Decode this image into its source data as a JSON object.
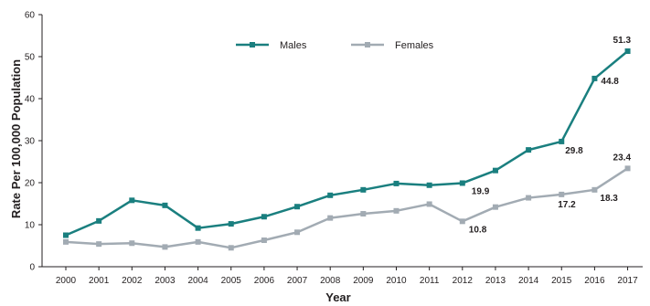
{
  "chart_data": {
    "type": "line",
    "x": [
      "2000",
      "2001",
      "2002",
      "2003",
      "2004",
      "2005",
      "2006",
      "2007",
      "2008",
      "2009",
      "2010",
      "2011",
      "2012",
      "2013",
      "2014",
      "2015",
      "2016",
      "2017"
    ],
    "series": [
      {
        "name": "Males",
        "color": "#1a7f7f",
        "values": [
          7.5,
          10.9,
          15.8,
          14.6,
          9.2,
          10.2,
          11.9,
          14.3,
          17.0,
          18.3,
          19.8,
          19.4,
          19.9,
          22.9,
          27.8,
          29.8,
          44.8,
          51.3
        ]
      },
      {
        "name": "Females",
        "color": "#a2abb3",
        "values": [
          5.9,
          5.4,
          5.6,
          4.7,
          5.9,
          4.5,
          6.3,
          8.2,
          11.6,
          12.6,
          13.3,
          14.9,
          10.8,
          14.2,
          16.4,
          17.2,
          18.3,
          23.4
        ]
      }
    ],
    "data_labels": [
      {
        "series": 0,
        "index": 12,
        "text": "19.9"
      },
      {
        "series": 0,
        "index": 15,
        "text": "29.8"
      },
      {
        "series": 0,
        "index": 16,
        "text": "44.8"
      },
      {
        "series": 0,
        "index": 17,
        "text": "51.3"
      },
      {
        "series": 1,
        "index": 12,
        "text": "10.8"
      },
      {
        "series": 1,
        "index": 15,
        "text": "17.2"
      },
      {
        "series": 1,
        "index": 16,
        "text": "18.3"
      },
      {
        "series": 1,
        "index": 17,
        "text": "23.4"
      }
    ],
    "xlabel": "Year",
    "ylabel": "Rate Per 100,000 Population",
    "ylim": [
      0,
      60
    ],
    "yticks": [
      0,
      10,
      20,
      30,
      40,
      50,
      60
    ],
    "grid": false,
    "legend_position": "top-center"
  }
}
